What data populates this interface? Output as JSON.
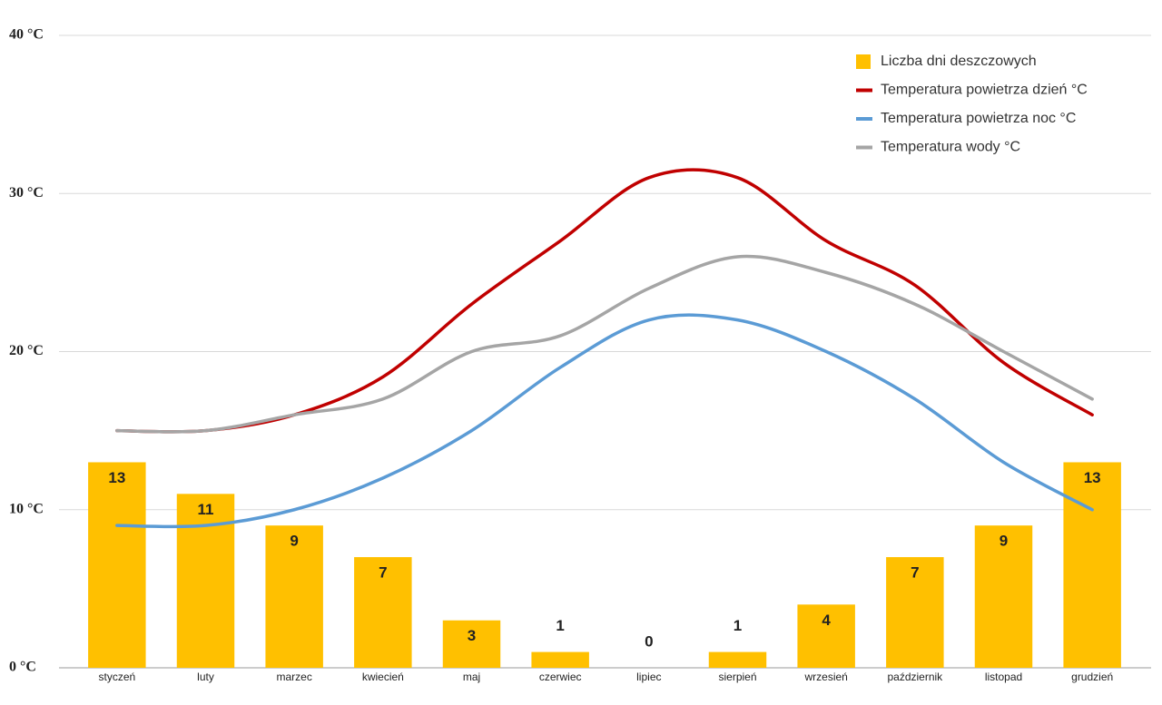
{
  "chart_data": {
    "type": "bar-line",
    "categories": [
      "styczeń",
      "luty",
      "marzec",
      "kwiecień",
      "maj",
      "czerwiec",
      "lipiec",
      "sierpień",
      "wrzesień",
      "październik",
      "listopad",
      "grudzień"
    ],
    "series": [
      {
        "name": "Liczba dni deszczowych",
        "type": "bar",
        "color": "#ffc000",
        "values": [
          13,
          11,
          9,
          7,
          3,
          1,
          0,
          1,
          4,
          7,
          9,
          13
        ]
      },
      {
        "name": "Temperatura powietrza dzień °C",
        "type": "line",
        "color": "#c00000",
        "values": [
          15,
          15,
          16,
          18.4,
          23,
          27,
          31,
          31,
          27,
          24.2,
          19.3,
          16
        ]
      },
      {
        "name": "Temperatura powietrza noc °C",
        "type": "line",
        "color": "#5b9bd5",
        "values": [
          9,
          9,
          10,
          12,
          15,
          19,
          22,
          22,
          20,
          17,
          13,
          10
        ]
      },
      {
        "name": "Temperatura wody °C",
        "type": "line",
        "color": "#a5a5a5",
        "values": [
          15,
          15,
          16,
          17,
          20,
          21,
          24,
          26,
          25,
          23,
          20,
          17
        ]
      }
    ],
    "ylim": [
      0,
      40
    ],
    "yticks": [
      {
        "value": 0,
        "label": "0 °C"
      },
      {
        "value": 10,
        "label": "10 °C"
      },
      {
        "value": 20,
        "label": "20 °C"
      },
      {
        "value": 30,
        "label": "30 °C"
      },
      {
        "value": 40,
        "label": "40 °C"
      }
    ],
    "grid": true,
    "legend": "top-right"
  }
}
